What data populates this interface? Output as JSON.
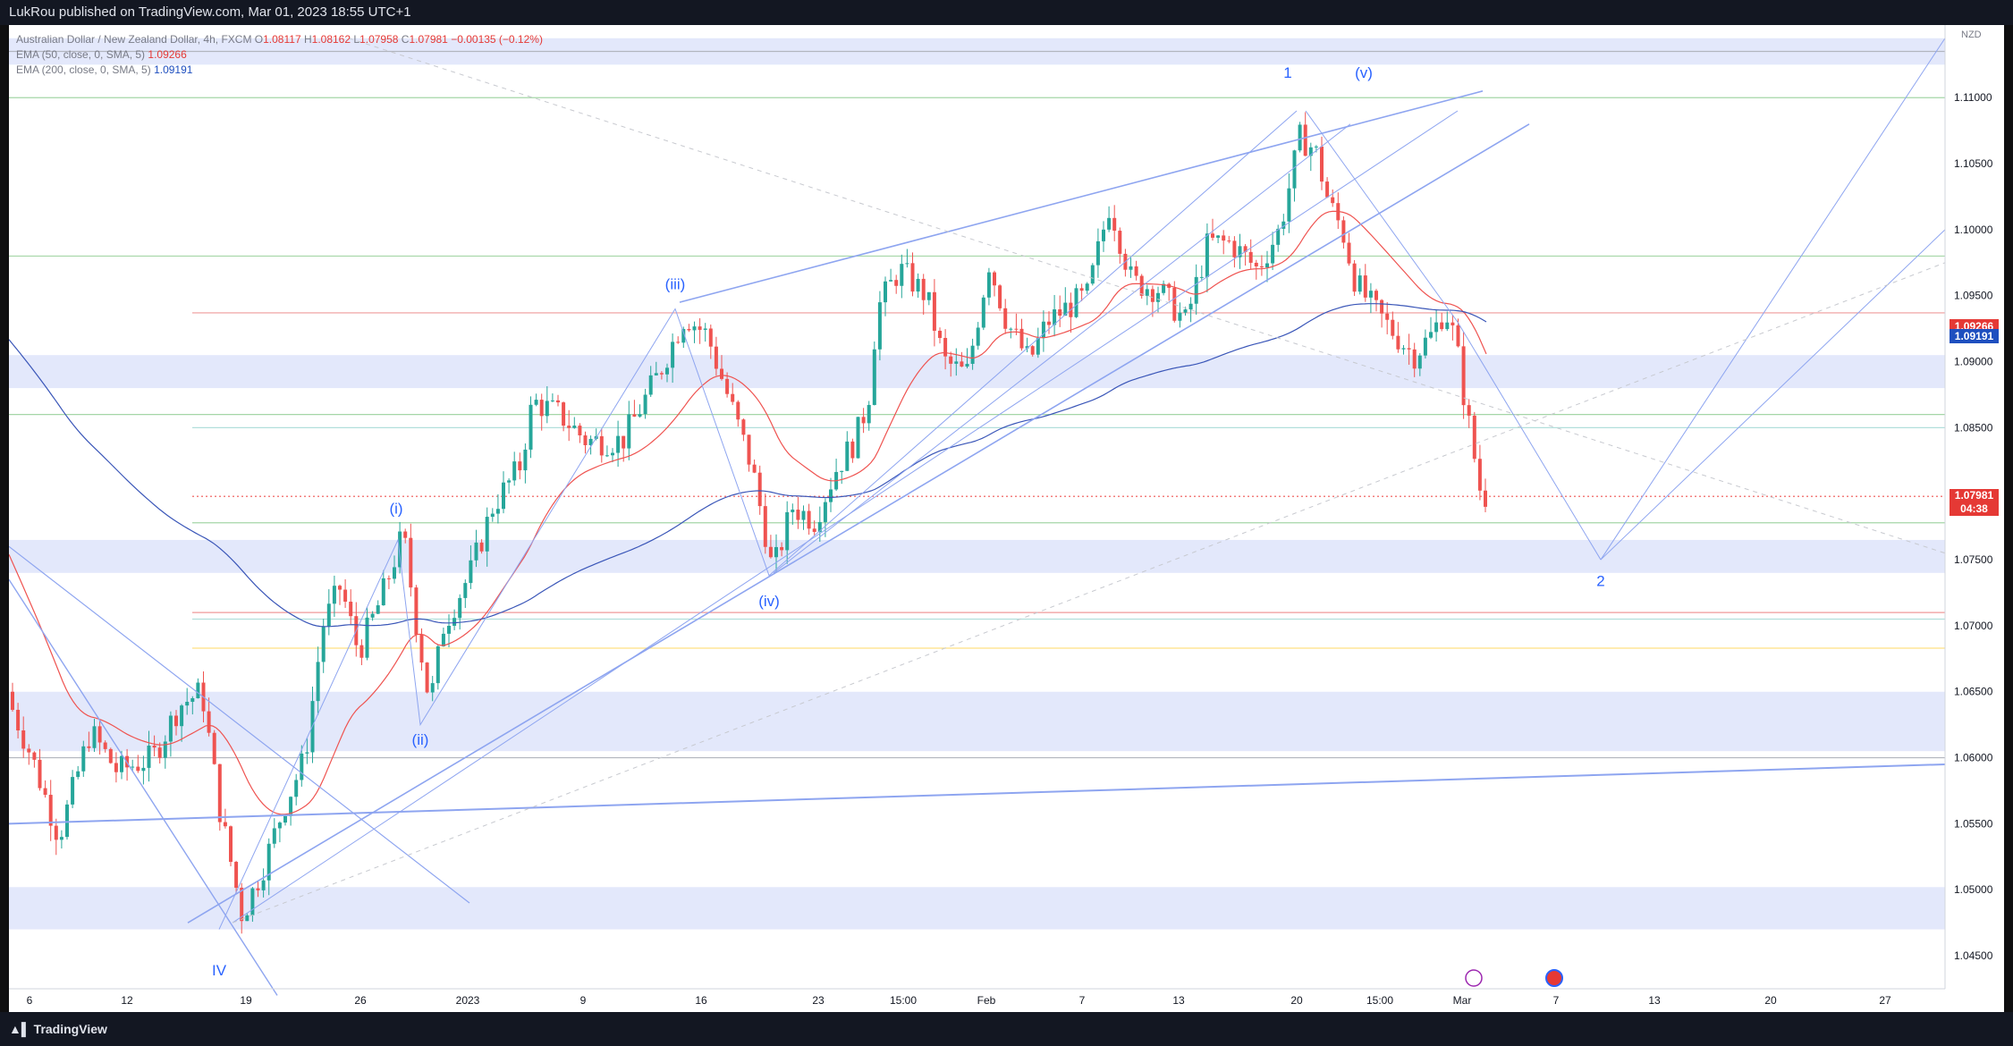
{
  "publisher_line": "LukRou published on TradingView.com, Mar 01, 2023 18:55 UTC+1",
  "footer_brand": "TradingView",
  "legend": {
    "symbol": "Australian Dollar / New Zealand Dollar, 4h, FXCM",
    "o_label": "O",
    "o_value": "1.08117",
    "h_label": "H",
    "h_value": "1.08162",
    "l_label": "L",
    "l_value": "1.07958",
    "c_label": "C",
    "c_value": "1.07981",
    "change": "−0.00135 (−0.12%)",
    "ema50_label": "EMA (50, close, 0, SMA, 5)",
    "ema50_value": "1.09266",
    "ema200_label": "EMA (200, close, 0, SMA, 5)",
    "ema200_value": "1.09191"
  },
  "currency_label": "NZD",
  "price_badges": {
    "ema50": "1.09266",
    "ema200": "1.09191",
    "last": "1.07981",
    "countdown": "04:38"
  },
  "colors": {
    "up": "#26a69a",
    "down": "#ef5350",
    "ema50": "#ef5350",
    "ema200": "#2962ff",
    "annotation": "#2962ff",
    "zone": "#e3e8fb"
  },
  "chart_data": {
    "type": "candlestick",
    "ylim": [
      1.0425,
      1.1155
    ],
    "y_ticks": [
      "1.04500",
      "1.05000",
      "1.05500",
      "1.06000",
      "1.06500",
      "1.07000",
      "1.07500",
      "1.08000",
      "1.08500",
      "1.09000",
      "1.09500",
      "1.10000",
      "1.10500",
      "1.11000"
    ],
    "x_ticks": [
      "6",
      "12",
      "19",
      "26",
      "2023",
      "9",
      "16",
      "23",
      "15:00",
      "Feb",
      "7",
      "13",
      "20",
      "15:00",
      "Mar",
      "7",
      "13",
      "20",
      "27"
    ],
    "wave_labels": [
      {
        "text": "IV",
        "date": "Dec 16",
        "price": 1.0435
      },
      {
        "text": "(i)",
        "date": "Dec 28",
        "price": 1.0785
      },
      {
        "text": "(ii)",
        "date": "Dec 29",
        "price": 1.061
      },
      {
        "text": "(iii)",
        "date": "Jan 13",
        "price": 1.0955
      },
      {
        "text": "(iv)",
        "date": "Jan 19",
        "price": 1.0715
      },
      {
        "text": "1",
        "date": "Feb 20",
        "price": 1.1115
      },
      {
        "text": "(v)",
        "date": "Feb 21",
        "price": 1.1115
      },
      {
        "text": "2",
        "date": "Mar 07",
        "price": 1.073
      }
    ],
    "zones": [
      {
        "from": 1.1125,
        "to": 1.1145
      },
      {
        "from": 1.088,
        "to": 1.0905
      },
      {
        "from": 1.074,
        "to": 1.0765
      },
      {
        "from": 1.0605,
        "to": 1.065
      },
      {
        "from": 1.047,
        "to": 1.0502
      }
    ],
    "h_lines": [
      {
        "price": 1.1135,
        "color": "#b2b5be"
      },
      {
        "price": 1.11,
        "color": "#a5d6a7"
      },
      {
        "price": 1.098,
        "color": "#a5d6a7"
      },
      {
        "price": 1.0937,
        "color": "#ef9a9a"
      },
      {
        "price": 1.086,
        "color": "#a5d6a7"
      },
      {
        "price": 1.085,
        "color": "#b2dfdb"
      },
      {
        "price": 1.0798,
        "color": "#ef5350",
        "dotted": true
      },
      {
        "price": 1.0778,
        "color": "#a5d6a7"
      },
      {
        "price": 1.071,
        "color": "#ef9a9a"
      },
      {
        "price": 1.0705,
        "color": "#b2dfdb"
      },
      {
        "price": 1.0683,
        "color": "#ffe082"
      },
      {
        "price": 1.06,
        "color": "#b2b5be"
      }
    ],
    "candles_summary": {
      "start": "Dec 05",
      "low": 1.047,
      "high": 1.109,
      "last": 1.07981
    }
  }
}
